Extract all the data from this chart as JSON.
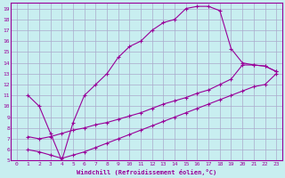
{
  "xlabel": "Windchill (Refroidissement éolien,°C)",
  "bg_color": "#c8eef0",
  "line_color": "#990099",
  "grid_color": "#aaaacc",
  "xlim": [
    -0.5,
    23.5
  ],
  "ylim": [
    5,
    19.5
  ],
  "xticks": [
    0,
    1,
    2,
    3,
    4,
    5,
    6,
    7,
    8,
    9,
    10,
    11,
    12,
    13,
    14,
    15,
    16,
    17,
    18,
    19,
    20,
    21,
    22,
    23
  ],
  "yticks": [
    5,
    6,
    7,
    8,
    9,
    10,
    11,
    12,
    13,
    14,
    15,
    16,
    17,
    18,
    19
  ],
  "curve1_x": [
    1,
    2,
    3,
    4,
    5,
    6,
    7,
    8,
    9,
    10,
    11,
    12,
    13,
    14,
    15,
    16,
    17,
    18,
    19,
    20,
    21,
    22,
    23
  ],
  "curve1_y": [
    11,
    10,
    7.5,
    5,
    8.5,
    11,
    12,
    13,
    14.5,
    15.5,
    16,
    17,
    17.7,
    18,
    19,
    19.2,
    19.2,
    18.8,
    15.3,
    14.0,
    13.8,
    13.7,
    13.2
  ],
  "curve2_x": [
    1,
    2,
    3,
    4,
    5,
    6,
    7,
    8,
    9,
    10,
    11,
    12,
    13,
    14,
    15,
    16,
    17,
    18,
    19,
    20,
    21,
    22,
    23
  ],
  "curve2_y": [
    7.2,
    7.0,
    7.2,
    7.5,
    7.8,
    8.0,
    8.3,
    8.5,
    8.8,
    9.1,
    9.4,
    9.8,
    10.2,
    10.5,
    10.8,
    11.2,
    11.5,
    12.0,
    12.5,
    13.8,
    13.8,
    13.7,
    13.2
  ],
  "curve3_x": [
    1,
    2,
    3,
    4,
    5,
    6,
    7,
    8,
    9,
    10,
    11,
    12,
    13,
    14,
    15,
    16,
    17,
    18,
    19,
    20,
    21,
    22,
    23
  ],
  "curve3_y": [
    6.0,
    5.8,
    5.5,
    5.2,
    5.5,
    5.8,
    6.2,
    6.6,
    7.0,
    7.4,
    7.8,
    8.2,
    8.6,
    9.0,
    9.4,
    9.8,
    10.2,
    10.6,
    11.0,
    11.4,
    11.8,
    12.0,
    13.0
  ]
}
